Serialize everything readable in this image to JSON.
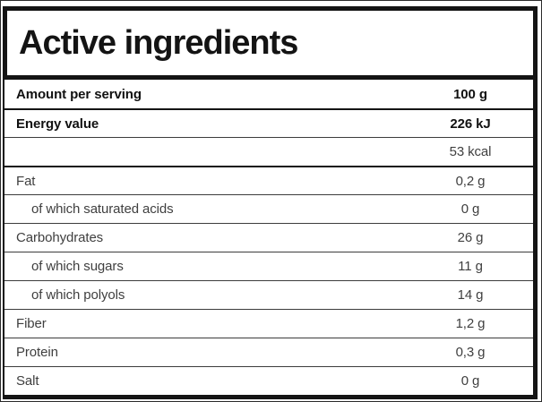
{
  "title": "Active ingredients",
  "table": {
    "rows": [
      {
        "label": "Amount per serving",
        "value": "100 g",
        "bold": true,
        "indent": false
      },
      {
        "label": "Energy value",
        "value": "226 kJ",
        "bold": true,
        "indent": false
      },
      {
        "label": "",
        "value": "53 kcal",
        "bold": false,
        "indent": false
      },
      {
        "label": "Fat",
        "value": "0,2 g",
        "bold": false,
        "indent": false
      },
      {
        "label": "of which saturated acids",
        "value": "0 g",
        "bold": false,
        "indent": true
      },
      {
        "label": "Carbohydrates",
        "value": "26 g",
        "bold": false,
        "indent": false
      },
      {
        "label": "of which sugars",
        "value": "11 g",
        "bold": false,
        "indent": true
      },
      {
        "label": "of which polyols",
        "value": "14 g",
        "bold": false,
        "indent": true
      },
      {
        "label": "Fiber",
        "value": "1,2 g",
        "bold": false,
        "indent": false
      },
      {
        "label": "Protein",
        "value": "0,3 g",
        "bold": false,
        "indent": false
      },
      {
        "label": "Salt",
        "value": "0 g",
        "bold": false,
        "indent": false
      }
    ]
  },
  "colors": {
    "border": "#141414",
    "text_bold": "#111111",
    "text_regular": "#3f3f3f",
    "separator": "#3c3c3c",
    "background": "#ffffff"
  }
}
